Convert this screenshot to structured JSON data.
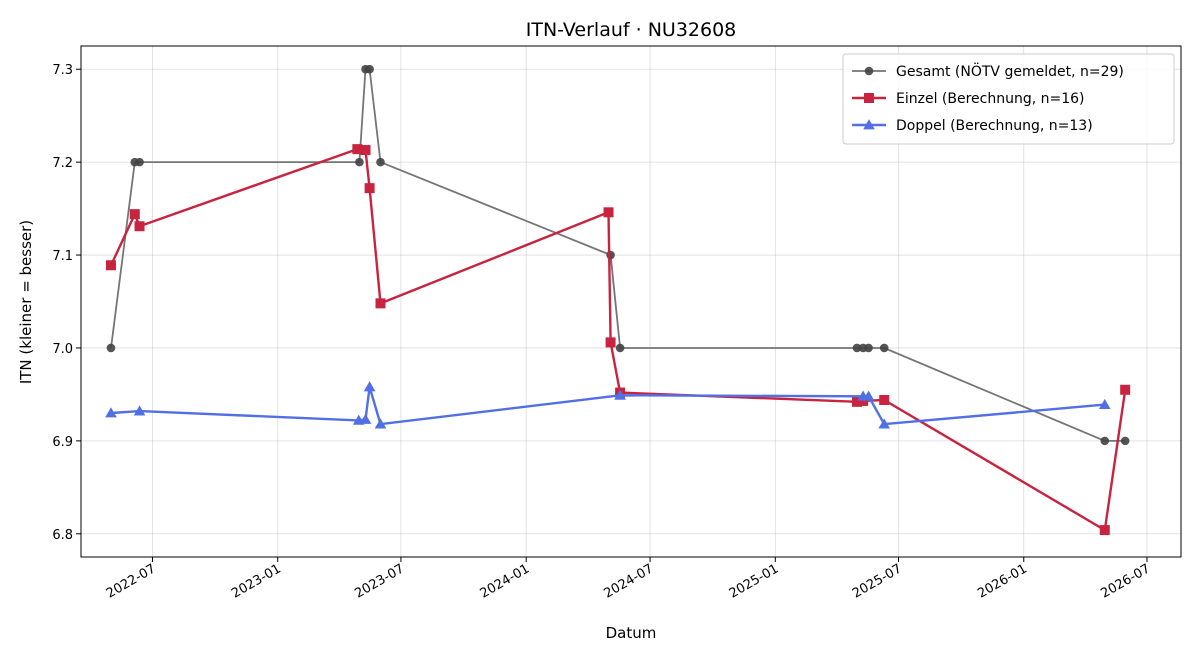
{
  "chart_data": {
    "type": "line",
    "title": "ITN-Verlauf · NU32608",
    "xlabel": "Datum",
    "ylabel": "ITN  (kleiner = besser)",
    "x_range": [
      "2022-03-18",
      "2026-08-20"
    ],
    "ylim": [
      6.775,
      7.325
    ],
    "x_ticks": [
      "2022-07",
      "2023-01",
      "2023-07",
      "2024-01",
      "2024-07",
      "2025-01",
      "2025-07",
      "2026-01",
      "2026-07"
    ],
    "y_ticks": [
      6.8,
      6.9,
      7.0,
      7.1,
      7.2,
      7.3
    ],
    "y_tick_labels": [
      "6.8",
      "6.9",
      "7.0",
      "7.1",
      "7.2",
      "7.3"
    ],
    "grid": true,
    "legend_position": "top-right",
    "series": [
      {
        "name": "Gesamt (NÖTV gemeldet, n=29)",
        "color": "#757575",
        "marker": "circle",
        "points": [
          [
            "2022-05-01",
            7.0
          ],
          [
            "2022-06-05",
            7.2
          ],
          [
            "2022-06-12",
            7.2
          ],
          [
            "2023-05-01",
            7.2
          ],
          [
            "2023-05-10",
            7.3
          ],
          [
            "2023-05-16",
            7.3
          ],
          [
            "2023-06-01",
            7.2
          ],
          [
            "2024-05-04",
            7.1
          ],
          [
            "2024-05-18",
            7.0
          ],
          [
            "2025-05-01",
            7.0
          ],
          [
            "2025-05-10",
            7.0
          ],
          [
            "2025-05-18",
            7.0
          ],
          [
            "2025-06-10",
            7.0
          ],
          [
            "2026-04-30",
            6.9
          ],
          [
            "2026-05-30",
            6.9
          ]
        ]
      },
      {
        "name": "Einzel (Berechnung, n=16)",
        "color": "#c8233f",
        "marker": "square",
        "points": [
          [
            "2022-05-01",
            7.089
          ],
          [
            "2022-06-05",
            7.144
          ],
          [
            "2022-06-12",
            7.131
          ],
          [
            "2023-04-28",
            7.214
          ],
          [
            "2023-05-10",
            7.213
          ],
          [
            "2023-05-16",
            7.172
          ],
          [
            "2023-06-01",
            7.048
          ],
          [
            "2024-05-01",
            7.146
          ],
          [
            "2024-05-04",
            7.006
          ],
          [
            "2024-05-18",
            6.952
          ],
          [
            "2025-05-01",
            6.942
          ],
          [
            "2025-05-10",
            6.943
          ],
          [
            "2025-06-10",
            6.944
          ],
          [
            "2026-04-30",
            6.804
          ],
          [
            "2026-05-30",
            6.955
          ]
        ]
      },
      {
        "name": "Doppel (Berechnung, n=13)",
        "color": "#5270e6",
        "marker": "triangle",
        "points": [
          [
            "2022-05-01",
            6.93
          ],
          [
            "2022-06-12",
            6.932
          ],
          [
            "2023-04-30",
            6.922
          ],
          [
            "2023-05-10",
            6.923
          ],
          [
            "2023-05-16",
            6.958
          ],
          [
            "2023-06-01",
            6.918
          ],
          [
            "2024-05-18",
            6.949
          ],
          [
            "2025-05-10",
            6.948
          ],
          [
            "2025-05-18",
            6.948
          ],
          [
            "2025-06-10",
            6.918
          ],
          [
            "2026-04-30",
            6.939
          ]
        ]
      }
    ]
  }
}
